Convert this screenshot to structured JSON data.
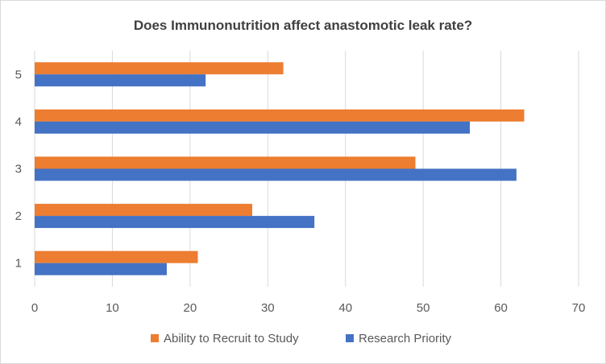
{
  "chart_data": {
    "type": "bar",
    "orientation": "horizontal",
    "title": "Does Immunonutrition affect anastomotic leak rate?",
    "categories": [
      "1",
      "2",
      "3",
      "4",
      "5"
    ],
    "series": [
      {
        "name": "Ability to Recruit to Study",
        "color": "#ED7D31",
        "values": [
          21,
          28,
          49,
          63,
          32
        ]
      },
      {
        "name": "Research Priority",
        "color": "#4472C4",
        "values": [
          17,
          36,
          62,
          56,
          22
        ]
      }
    ],
    "xlim": [
      0,
      70
    ],
    "xticks": [
      0,
      10,
      20,
      30,
      40,
      50,
      60,
      70
    ],
    "grid": "vertical",
    "legend": "bottom"
  }
}
